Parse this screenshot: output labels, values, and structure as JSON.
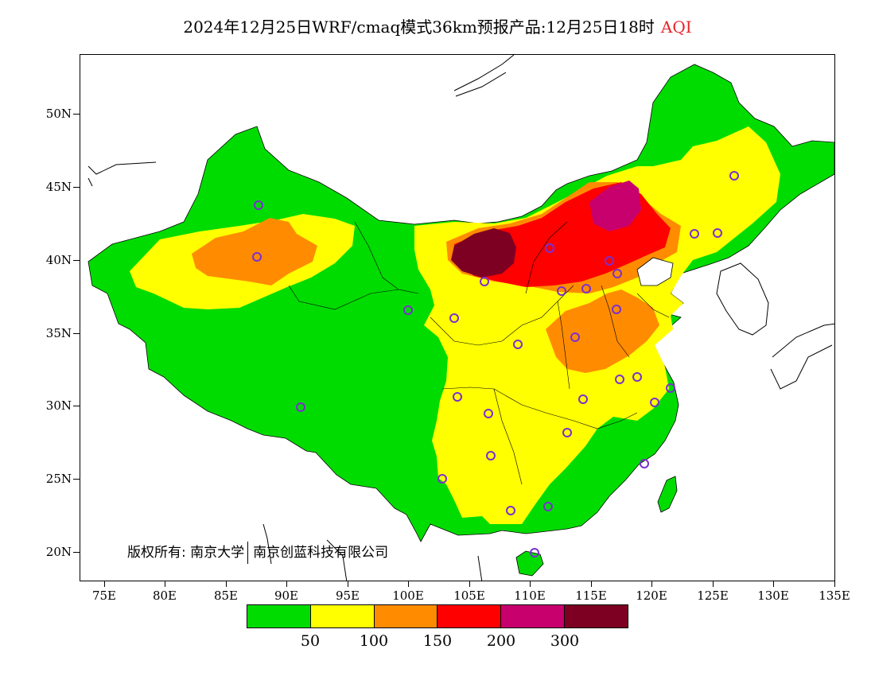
{
  "title": {
    "main": "2024年12月25日WRF/cmaq模式36km预报产品:12月25日18时",
    "variable": "AQI"
  },
  "axes": {
    "x_labels": [
      "75E",
      "80E",
      "85E",
      "90E",
      "95E",
      "100E",
      "105E",
      "110E",
      "115E",
      "120E",
      "125E",
      "130E",
      "135E"
    ],
    "y_labels": [
      "50N",
      "45N",
      "40N",
      "35N",
      "30N",
      "25N",
      "20N"
    ]
  },
  "copyright": {
    "left": "版权所有: 南京大学",
    "right": "南京创蓝科技有限公司"
  },
  "legend": {
    "colors": [
      "#00dc00",
      "#ffff00",
      "#ff8c00",
      "#ff0000",
      "#c8006e",
      "#7d0023"
    ],
    "labels": [
      "50",
      "100",
      "150",
      "200",
      "300"
    ]
  },
  "colors": {
    "sea": "#ffffff",
    "land_good": "#00dc00",
    "moderate": "#ffff00",
    "sensitive": "#ff8c00",
    "unhealthy": "#ff0000",
    "very_unhealthy": "#c8006e",
    "hazardous": "#7d0023",
    "station": "#7b2fd0"
  }
}
